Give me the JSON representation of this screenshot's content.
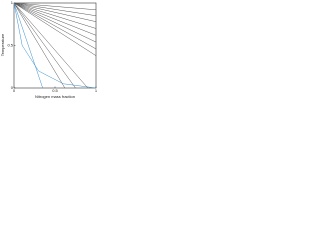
{
  "chart_data": {
    "type": "line",
    "x_label": "Nitrogen mass fraction",
    "y_label": "Temperature",
    "xlim": [
      0,
      1
    ],
    "ylim": [
      0,
      1
    ],
    "xticks": [
      0,
      0.5,
      1
    ],
    "yticks": [
      0,
      0.5,
      1
    ],
    "series": [
      {
        "color": "#555555",
        "x": [
          0,
          1
        ],
        "values": [
          1,
          0.92
        ]
      },
      {
        "color": "#555555",
        "x": [
          0,
          1
        ],
        "values": [
          1,
          0.85
        ]
      },
      {
        "color": "#555555",
        "x": [
          0,
          1
        ],
        "values": [
          1,
          0.78
        ]
      },
      {
        "color": "#555555",
        "x": [
          0,
          1
        ],
        "values": [
          1,
          0.7
        ]
      },
      {
        "color": "#555555",
        "x": [
          0,
          1
        ],
        "values": [
          1,
          0.62
        ]
      },
      {
        "color": "#555555",
        "x": [
          0,
          1
        ],
        "values": [
          1,
          0.54
        ]
      },
      {
        "color": "#555555",
        "x": [
          0,
          1
        ],
        "values": [
          1,
          0.46
        ]
      },
      {
        "color": "#555555",
        "x": [
          0,
          1
        ],
        "values": [
          1,
          0.38
        ]
      },
      {
        "color": "#555555",
        "x": [
          0,
          0.9
        ],
        "values": [
          1,
          0
        ]
      },
      {
        "color": "#555555",
        "x": [
          0,
          0.75
        ],
        "values": [
          1,
          0
        ]
      },
      {
        "color": "#555555",
        "x": [
          0,
          0.62
        ],
        "values": [
          1,
          0
        ]
      },
      {
        "color": "#3a8fd0",
        "x": [
          0,
          0.35
        ],
        "values": [
          1,
          0
        ]
      },
      {
        "color": "#3a8fd0",
        "x": [
          0,
          0.1,
          0.3,
          0.6,
          1
        ],
        "values": [
          1,
          0.5,
          0.2,
          0.05,
          0
        ]
      }
    ]
  }
}
